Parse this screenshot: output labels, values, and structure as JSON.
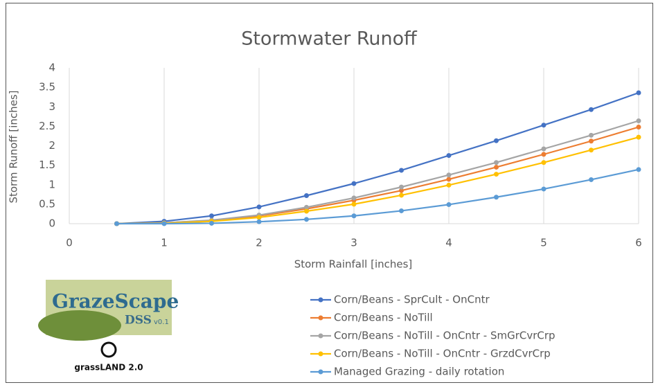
{
  "chart_data": {
    "type": "line",
    "title": "Stormwater Runoff",
    "x_label": "Storm Rainfall [inches]",
    "y_label": "Storm Runoff [inches]",
    "x": [
      0.5,
      1,
      1.5,
      2,
      2.5,
      3,
      3.5,
      4,
      4.5,
      5,
      5.5,
      6
    ],
    "series": [
      {
        "name": "Corn/Beans - SprCult - OnCntr",
        "color": "#4472c4",
        "values": [
          0,
          0.06,
          0.2,
          0.43,
          0.72,
          1.03,
          1.37,
          1.75,
          2.13,
          2.53,
          2.93,
          3.36
        ]
      },
      {
        "name": "Corn/Beans - NoTill",
        "color": "#ed7d31",
        "values": [
          0,
          0.02,
          0.08,
          0.2,
          0.38,
          0.6,
          0.85,
          1.14,
          1.45,
          1.78,
          2.12,
          2.48
        ]
      },
      {
        "name": "Corn/Beans - NoTill - OnCntr - SmGrCvrCrp",
        "color": "#a5a5a5",
        "values": [
          0,
          0.02,
          0.09,
          0.22,
          0.42,
          0.66,
          0.94,
          1.25,
          1.57,
          1.92,
          2.27,
          2.64
        ]
      },
      {
        "name": "Corn/Beans - NoTill - OnCntr - GrzdCvrCrp",
        "color": "#ffc000",
        "values": [
          0,
          0.01,
          0.06,
          0.16,
          0.32,
          0.5,
          0.73,
          0.99,
          1.27,
          1.57,
          1.89,
          2.22
        ]
      },
      {
        "name": "Managed Grazing - daily rotation",
        "color": "#5b9bd5",
        "values": [
          0,
          0,
          0.01,
          0.05,
          0.11,
          0.2,
          0.33,
          0.49,
          0.68,
          0.89,
          1.13,
          1.39
        ]
      }
    ],
    "xlim": [
      0,
      6
    ],
    "xticks": [
      0,
      1,
      2,
      3,
      4,
      5,
      6
    ],
    "ylim": [
      0,
      4
    ],
    "yticks": [
      0,
      0.5,
      1,
      1.5,
      2,
      2.5,
      3,
      3.5,
      4
    ],
    "grid": "x"
  },
  "logos": {
    "app_name": "GrazeScape",
    "app_suffix": "DSS",
    "app_version": "v0.1",
    "org": "grassLAND 2.0"
  }
}
